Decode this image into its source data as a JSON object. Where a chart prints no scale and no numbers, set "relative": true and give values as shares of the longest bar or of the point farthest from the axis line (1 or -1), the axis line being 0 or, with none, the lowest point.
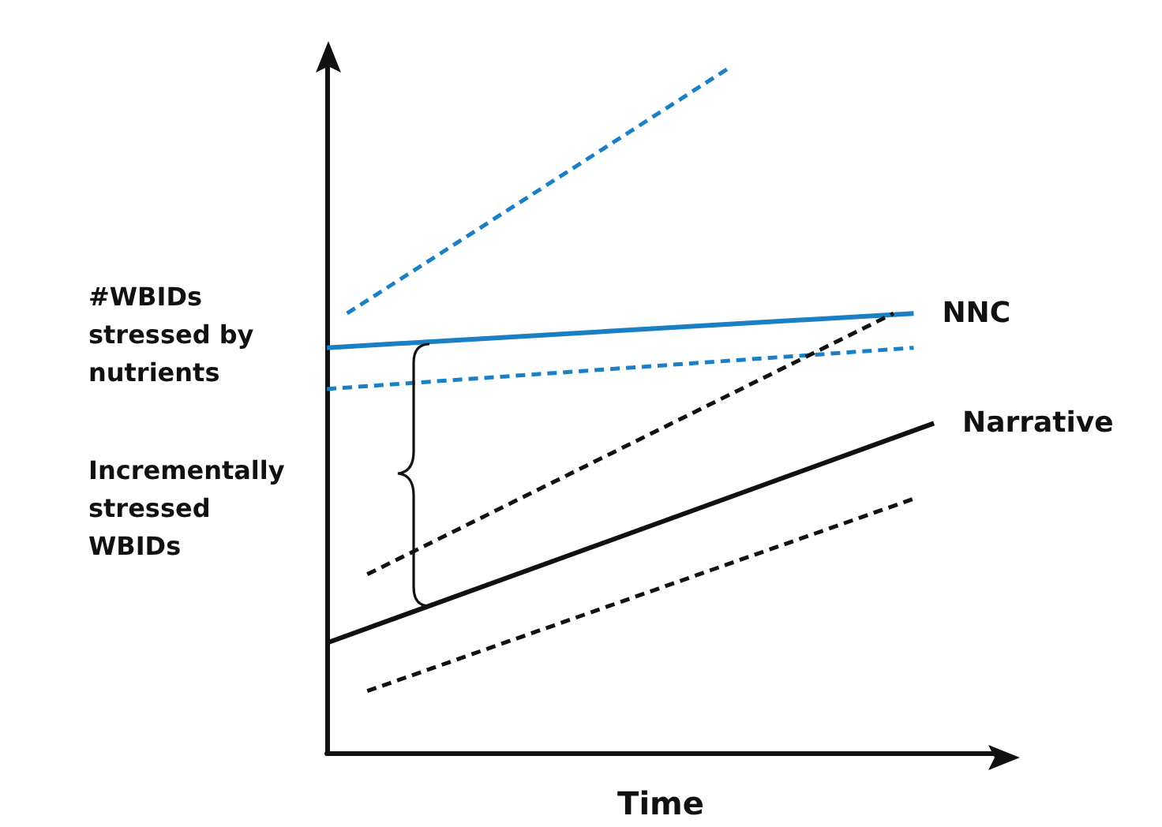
{
  "chart_data": {
    "type": "line",
    "relative": true,
    "xlabel": "Time",
    "grid": false,
    "legend": false,
    "marker": "none",
    "annotations": [
      "#WBIDs stressed by nutrients",
      "Incrementally stressed WBIDs"
    ],
    "categories": [
      null,
      null,
      null,
      null,
      null,
      null,
      null,
      null,
      null,
      null,
      null,
      null,
      null,
      null,
      null,
      null,
      null,
      null,
      null,
      null,
      null,
      null,
      null,
      null,
      null,
      null,
      null,
      null,
      null,
      null,
      null,
      null,
      null,
      null
    ],
    "series": [
      {
        "name": "NNC",
        "color": "#1a7fc4",
        "line_style": "solid",
        "values": [
          0.59,
          null,
          null,
          null,
          null,
          null,
          null,
          null,
          null,
          null,
          null,
          null,
          null,
          null,
          null,
          null,
          null,
          null,
          null,
          null,
          null,
          null,
          null,
          null,
          null,
          null,
          null,
          null,
          null,
          0.64,
          null,
          null,
          null,
          null
        ]
      },
      {
        "color": "#1a7fc4",
        "line_style": "dashed",
        "values": [
          null,
          0.64,
          null,
          null,
          null,
          null,
          null,
          null,
          null,
          null,
          null,
          null,
          null,
          null,
          null,
          null,
          null,
          null,
          null,
          null,
          1,
          null,
          null,
          null,
          null,
          null,
          null,
          null,
          null,
          null,
          null,
          null,
          null,
          null
        ]
      },
      {
        "color": "#1a7fc4",
        "line_style": "dashed",
        "values": [
          0.53,
          null,
          null,
          null,
          null,
          null,
          null,
          null,
          null,
          null,
          null,
          null,
          null,
          null,
          null,
          null,
          null,
          null,
          null,
          null,
          null,
          null,
          null,
          null,
          null,
          null,
          null,
          null,
          null,
          0.59,
          null,
          null,
          null,
          null
        ]
      },
      {
        "name": "Narrative",
        "color": "#111111",
        "line_style": "solid",
        "values": [
          0.16,
          null,
          null,
          null,
          null,
          null,
          null,
          null,
          null,
          null,
          null,
          null,
          null,
          null,
          null,
          null,
          null,
          null,
          null,
          null,
          null,
          null,
          null,
          null,
          null,
          null,
          null,
          null,
          null,
          null,
          0.48,
          null,
          null,
          null
        ]
      },
      {
        "color": "#111111",
        "line_style": "dashed",
        "values": [
          null,
          null,
          0.26,
          null,
          null,
          null,
          null,
          null,
          null,
          null,
          null,
          null,
          null,
          null,
          null,
          null,
          null,
          null,
          null,
          null,
          null,
          null,
          null,
          null,
          null,
          null,
          null,
          null,
          0.64,
          null,
          null,
          null,
          null,
          null
        ]
      },
      {
        "color": "#111111",
        "line_style": "dashed",
        "values": [
          null,
          null,
          0.09,
          null,
          null,
          null,
          null,
          null,
          null,
          null,
          null,
          null,
          null,
          null,
          null,
          null,
          null,
          null,
          null,
          null,
          null,
          null,
          null,
          null,
          null,
          null,
          null,
          null,
          null,
          0.37,
          null,
          null,
          null,
          null
        ]
      }
    ]
  }
}
